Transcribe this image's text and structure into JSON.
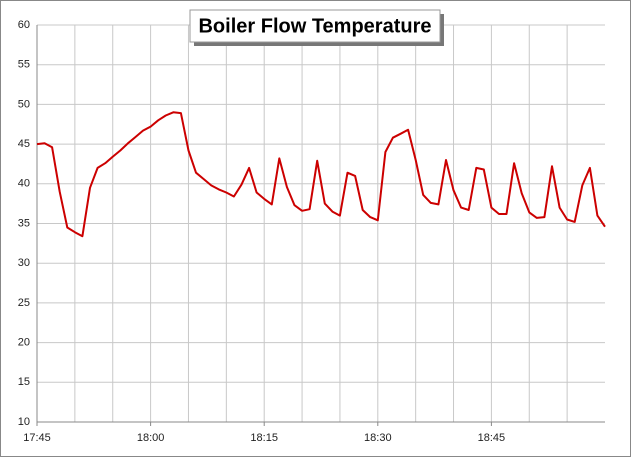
{
  "chart_data": {
    "type": "line",
    "title": "Boiler Flow Temperature",
    "x": [
      "17:45",
      "17:46",
      "17:47",
      "17:48",
      "17:49",
      "17:50",
      "17:51",
      "17:52",
      "17:53",
      "17:54",
      "17:55",
      "17:56",
      "17:57",
      "17:58",
      "17:59",
      "18:00",
      "18:01",
      "18:02",
      "18:03",
      "18:04",
      "18:05",
      "18:06",
      "18:07",
      "18:08",
      "18:09",
      "18:10",
      "18:11",
      "18:12",
      "18:13",
      "18:14",
      "18:15",
      "18:16",
      "18:17",
      "18:18",
      "18:19",
      "18:20",
      "18:21",
      "18:22",
      "18:23",
      "18:24",
      "18:25",
      "18:26",
      "18:27",
      "18:28",
      "18:29",
      "18:30",
      "18:31",
      "18:32",
      "18:33",
      "18:34",
      "18:35",
      "18:36",
      "18:37",
      "18:38",
      "18:39",
      "18:40",
      "18:41",
      "18:42",
      "18:43",
      "18:44",
      "18:45",
      "18:46",
      "18:47",
      "18:48",
      "18:49",
      "18:50",
      "18:51",
      "18:52",
      "18:53",
      "18:54",
      "18:55",
      "18:56",
      "18:57",
      "18:58",
      "18:59",
      "19:00"
    ],
    "values": [
      45.0,
      45.1,
      44.6,
      39.0,
      34.5,
      33.9,
      33.4,
      39.5,
      42.0,
      42.6,
      43.4,
      44.2,
      45.1,
      45.9,
      46.7,
      47.2,
      48.0,
      48.6,
      49.0,
      48.9,
      44.2,
      41.4,
      40.6,
      39.8,
      39.3,
      38.9,
      38.4,
      39.9,
      42.0,
      38.9,
      38.1,
      37.4,
      43.2,
      39.6,
      37.3,
      36.6,
      36.8,
      42.9,
      37.5,
      36.5,
      36.0,
      41.4,
      41.0,
      36.7,
      35.8,
      35.4,
      44.0,
      45.8,
      46.3,
      46.8,
      43.0,
      38.6,
      37.6,
      37.4,
      43.0,
      39.2,
      37.0,
      36.7,
      42.0,
      41.8,
      37.0,
      36.2,
      36.2,
      42.6,
      38.8,
      36.4,
      35.7,
      35.8,
      42.2,
      37.0,
      35.5,
      35.2,
      39.8,
      42.0,
      36.0,
      34.6
    ],
    "color": "#cc0000",
    "xlim": [
      "17:45",
      "19:00"
    ],
    "xticks": [
      "17:45",
      "18:00",
      "18:15",
      "18:30",
      "18:45"
    ],
    "xgrid": [
      "17:50",
      "17:55",
      "18:00",
      "18:05",
      "18:10",
      "18:15",
      "18:20",
      "18:25",
      "18:30",
      "18:35",
      "18:40",
      "18:45",
      "18:50",
      "18:55"
    ],
    "ylim": [
      10,
      60
    ],
    "yticks": [
      10,
      15,
      20,
      25,
      30,
      35,
      40,
      45,
      50,
      55,
      60
    ],
    "grid": true
  }
}
